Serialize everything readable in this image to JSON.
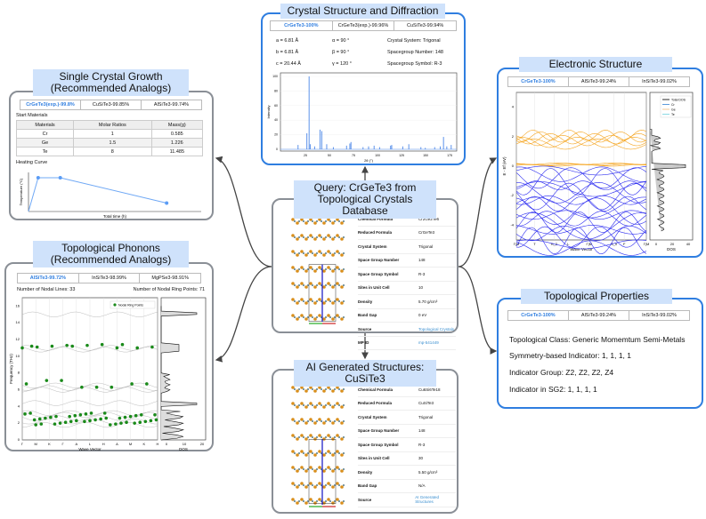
{
  "xrd": {
    "title": "Crystal Structure and Diffraction",
    "tabs": [
      "CrGeTe3-100%",
      "CrGeTe3(exp.)-99.96%",
      "CuSiTe3-99.94%"
    ],
    "lattice": [
      "a = 6.81 Å",
      "b = 6.81 Å",
      "c = 20.44 Å",
      "α = 90 °",
      "β = 90 °",
      "γ = 120 °",
      "Crystal System: Trigonal",
      "Spacegroup Number: 148",
      "Spacegroup Symbol: R-3"
    ],
    "ylabel": "Intensity",
    "xlabel": "2θ (°)",
    "yticks": [
      "0",
      "20",
      "40",
      "60",
      "80",
      "100"
    ],
    "xticks": [
      "25",
      "50",
      "75",
      "100",
      "125",
      "150",
      "175"
    ]
  },
  "growth": {
    "title1": "Single Crystal Growth",
    "title2": "(Recommended Analogs)",
    "tabs": [
      "CrGeTe3(exp.)-99.8%",
      "CuSiTe3-99.85%",
      "AlSiTe3-99.74%"
    ],
    "start_label": "Start Materials",
    "headers": [
      "Materials",
      "Molar Ratios",
      "Mass(g)"
    ],
    "rows": [
      [
        "Cr",
        "1",
        "0.585"
      ],
      [
        "Ge",
        "1.5",
        "1.226"
      ],
      [
        "Te",
        "8",
        "11.485"
      ]
    ],
    "heating_label": "Heating Curve",
    "ylabel": "Temperature (°C)",
    "xlabel": "Total time (h)",
    "curve": [
      [
        0,
        0
      ],
      [
        0.07,
        1
      ],
      [
        0.23,
        1
      ],
      [
        1,
        0.25
      ]
    ]
  },
  "phonons": {
    "title1": "Topological Phonons",
    "title2": "(Recommended Analogs)",
    "tabs": [
      "AlSiTe3-99.72%",
      "InSiTe3-98.99%",
      "MgPSe3-98.91%"
    ],
    "nodal_lines": "Number of Nodal Lines: 33",
    "nodal_points": "Number of Nodal Ring Points: 71",
    "legend": "Nodal Ring Points",
    "ylabel": "Frequency (THz)",
    "xlabel": "Wave Vector",
    "dos_label": "DOS",
    "yticks": [
      "0",
      "2",
      "4",
      "6",
      "8",
      "10",
      "12",
      "14",
      "16"
    ],
    "kpoints": [
      "Γ",
      "M",
      "K",
      "Γ",
      "A",
      "L",
      "H",
      "A",
      "M",
      "K",
      "H"
    ],
    "dos_ticks": [
      "0",
      "10",
      "20"
    ],
    "point_color": "#1a8a1a"
  },
  "query": {
    "title1": "Query: CrGeTe3 from",
    "title2": "Topological Crystals Database",
    "props": [
      [
        "Chemical Formula",
        "Cr2Ge2Te6"
      ],
      [
        "Reduced Formula",
        "CrGeTe3"
      ],
      [
        "Crystal System",
        "Trigonal"
      ],
      [
        "Space Group Number",
        "148"
      ],
      [
        "Space Group Symbol",
        "R-3"
      ],
      [
        "Sites in Unit Cell",
        "10"
      ],
      [
        "Density",
        "5.70 g/cm³"
      ],
      [
        "Band Gap",
        "0 eV"
      ],
      [
        "Source",
        "Topological Crystals"
      ],
      [
        "MP ID",
        "mp-541449"
      ]
    ]
  },
  "ai": {
    "title": "AI Generated Structures: CuSiTe3",
    "props": [
      [
        "Chemical Formula",
        "Cu6Si6Te18"
      ],
      [
        "Reduced Formula",
        "CuSiTe3"
      ],
      [
        "Crystal System",
        "Trigonal"
      ],
      [
        "Space Group Number",
        "148"
      ],
      [
        "Space Group Symbol",
        "R-3"
      ],
      [
        "Sites in Unit Cell",
        "30"
      ],
      [
        "Density",
        "5.50 g/cm³"
      ],
      [
        "Band Gap",
        "N/A"
      ],
      [
        "Source",
        "AI Generated Structures"
      ]
    ]
  },
  "electronic": {
    "title": "Electronic Structure",
    "tabs": [
      "CrGeTe3-100%",
      "AlSiTe3-99.24%",
      "InSiTe3-99.02%"
    ],
    "ylabel": "E - Ef (eV)",
    "xlabel": "Wave Vector",
    "dos_label": "DOS",
    "yticks": [
      "4",
      "2",
      "0",
      "-2",
      "-4"
    ],
    "kpoints": [
      "Γ|M",
      "T",
      "H_2",
      "L",
      "Γ|M",
      "S_0",
      "F",
      "Γ|M"
    ],
    "dos_ticks": [
      "0",
      "20",
      "40"
    ],
    "legend": [
      "Total DOS",
      "Cr",
      "Ge",
      "Te"
    ],
    "colors": {
      "valence": "#2b2bf0",
      "conduction": "#f5a623"
    }
  },
  "topo": {
    "title": "Topological Properties",
    "tabs": [
      "CrGeTe3-100%",
      "AlSiTe3-99.24%",
      "InSiTe3-99.02%"
    ],
    "lines": [
      "Topological Class: Generic Momemtum Semi-Metals",
      "Symmetry-based Indicator: 1, 1, 1, 1",
      "Indicator Group: Z2, Z2, Z2, Z4",
      "Indicator in SG2: 1, 1, 1, 1"
    ]
  }
}
